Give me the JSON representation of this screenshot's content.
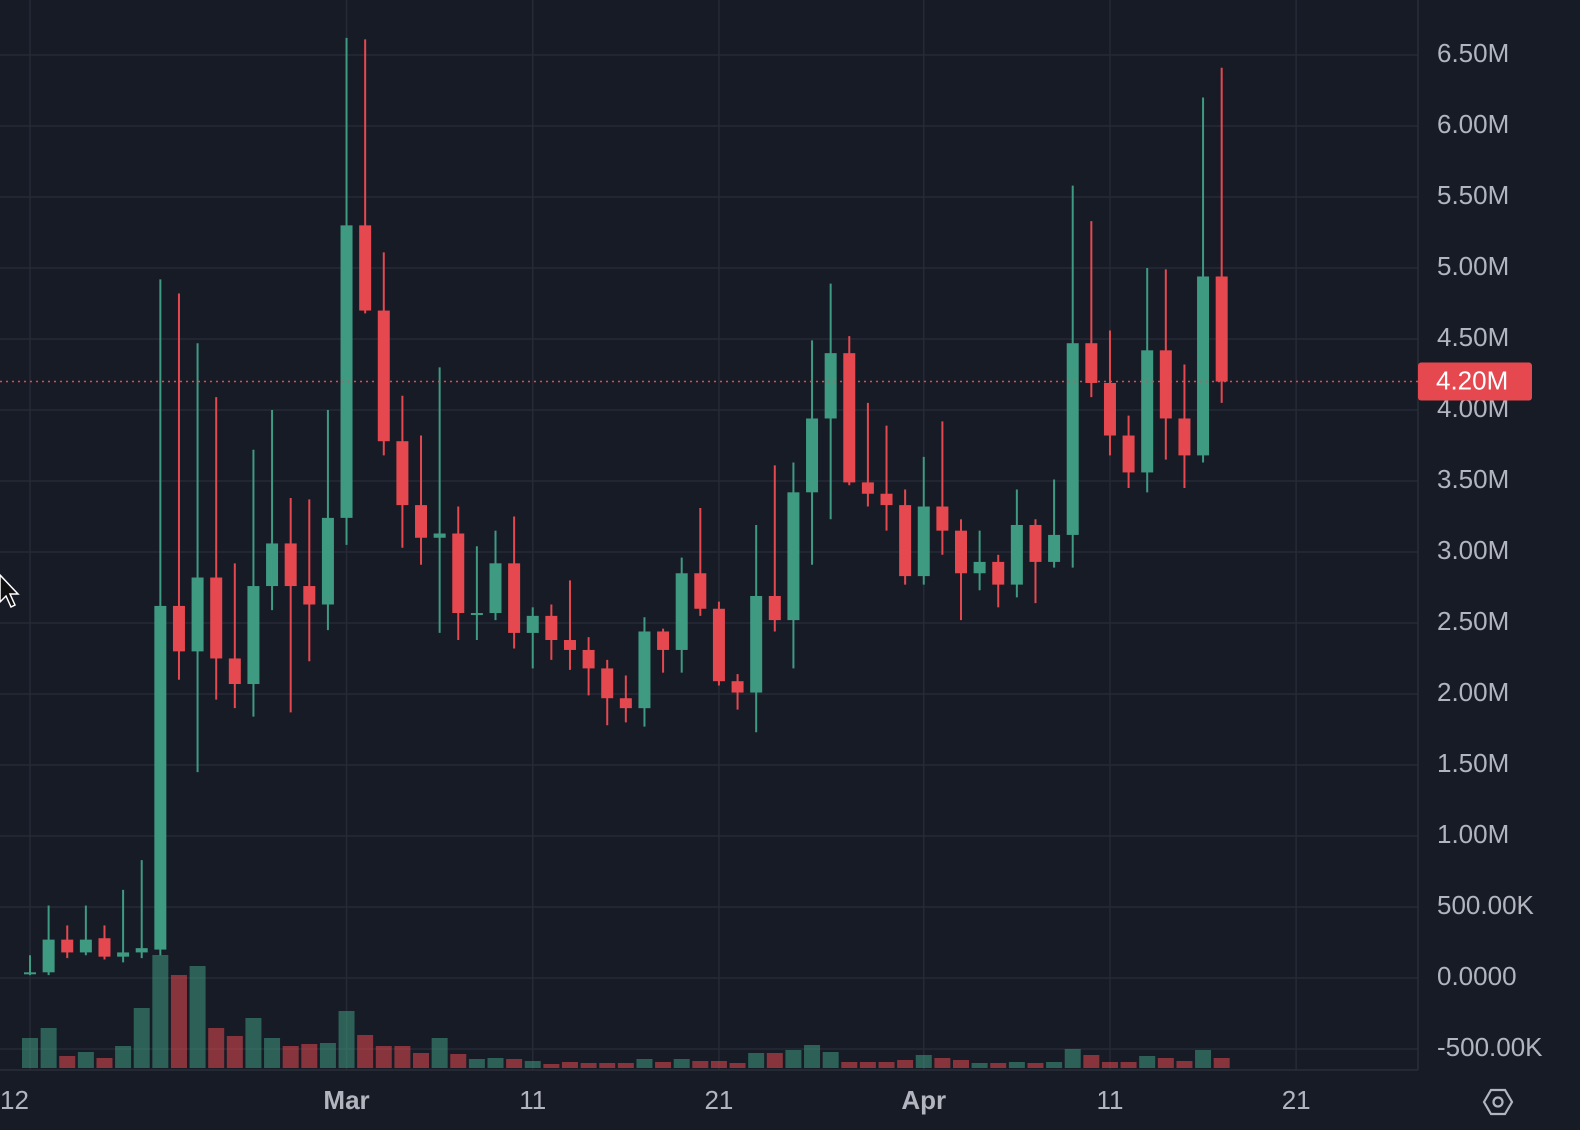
{
  "chart_data": {
    "type": "candlestick",
    "categories": [
      "12",
      null,
      null,
      null,
      null,
      null,
      null,
      null,
      null,
      null,
      null,
      null,
      null,
      null,
      null,
      null,
      null,
      "Mar",
      null,
      null,
      null,
      null,
      null,
      null,
      null,
      null,
      null,
      "11",
      null,
      null,
      null,
      null,
      null,
      null,
      null,
      null,
      null,
      "21",
      null,
      null,
      null,
      null,
      null,
      null,
      null,
      null,
      null,
      null,
      "Apr",
      null,
      null,
      null,
      null,
      null,
      null,
      null,
      null,
      null,
      "11",
      null,
      null,
      null,
      null,
      null,
      null,
      null,
      null,
      null,
      "21"
    ],
    "open": [
      0.03,
      0.04,
      0.27,
      0.18,
      0.28,
      0.15,
      0.18,
      0.2,
      2.62,
      2.3,
      2.82,
      2.25,
      2.07,
      2.76,
      3.06,
      2.76,
      2.63,
      3.24,
      5.3,
      4.7,
      3.78,
      3.33,
      3.1,
      3.13,
      2.57,
      2.57,
      2.92,
      2.43,
      2.55,
      2.38,
      2.31,
      2.18,
      1.97,
      1.9,
      2.44,
      2.31,
      2.85,
      2.6,
      2.09,
      2.01,
      2.69,
      2.52,
      3.42,
      3.94,
      4.4,
      3.49,
      3.41,
      3.33,
      2.83,
      3.32,
      3.15,
      2.85,
      2.93,
      2.77,
      3.19,
      2.93,
      3.12,
      4.47,
      4.19,
      3.82,
      3.56,
      4.42,
      3.94,
      3.68,
      4.94,
      null,
      null,
      null,
      null
    ],
    "high": [
      0.16,
      0.51,
      0.37,
      0.51,
      0.37,
      0.62,
      0.83,
      4.92,
      4.82,
      4.47,
      4.09,
      2.92,
      3.72,
      4.0,
      3.38,
      3.37,
      4.0,
      6.62,
      6.61,
      5.11,
      4.1,
      3.82,
      4.3,
      3.32,
      3.04,
      3.15,
      3.25,
      2.61,
      2.63,
      2.8,
      2.4,
      2.24,
      2.13,
      2.54,
      2.46,
      2.96,
      3.31,
      2.65,
      2.14,
      3.19,
      3.61,
      3.63,
      4.49,
      4.89,
      4.52,
      4.05,
      3.89,
      3.44,
      3.67,
      3.92,
      3.23,
      3.15,
      2.98,
      3.44,
      3.23,
      3.51,
      5.58,
      5.33,
      4.56,
      3.96,
      5.0,
      4.99,
      4.32,
      6.2,
      6.41,
      null,
      null,
      null,
      null
    ],
    "low": [
      0.02,
      0.02,
      0.14,
      0.16,
      0.13,
      0.11,
      0.14,
      0.16,
      2.1,
      1.45,
      1.96,
      1.9,
      1.84,
      2.59,
      1.87,
      2.23,
      2.45,
      3.05,
      4.68,
      3.68,
      3.03,
      2.91,
      2.43,
      2.38,
      2.38,
      2.52,
      2.32,
      2.18,
      2.24,
      2.17,
      1.99,
      1.78,
      1.8,
      1.77,
      2.15,
      2.15,
      2.55,
      2.06,
      1.89,
      1.73,
      2.44,
      2.18,
      2.91,
      3.23,
      3.47,
      3.32,
      3.15,
      2.77,
      2.77,
      2.98,
      2.52,
      2.73,
      2.61,
      2.68,
      2.64,
      2.89,
      2.89,
      4.09,
      3.68,
      3.45,
      3.42,
      3.65,
      3.45,
      3.63,
      4.05,
      null,
      null,
      null,
      null
    ],
    "close": [
      0.04,
      0.27,
      0.18,
      0.27,
      0.15,
      0.18,
      0.21,
      2.62,
      2.3,
      2.82,
      2.25,
      2.07,
      2.76,
      3.06,
      2.76,
      2.63,
      3.24,
      5.3,
      4.7,
      3.78,
      3.33,
      3.1,
      3.13,
      2.57,
      2.57,
      2.92,
      2.43,
      2.55,
      2.38,
      2.31,
      2.18,
      1.97,
      1.9,
      2.44,
      2.31,
      2.85,
      2.6,
      2.09,
      2.01,
      2.69,
      2.52,
      3.42,
      3.94,
      4.4,
      3.49,
      3.41,
      3.33,
      2.83,
      3.32,
      3.15,
      2.85,
      2.93,
      2.77,
      3.19,
      2.93,
      3.12,
      4.47,
      4.19,
      3.82,
      3.56,
      4.42,
      3.94,
      3.68,
      4.94,
      4.2,
      null,
      null,
      null,
      null
    ],
    "volume": [
      30,
      40,
      12,
      16,
      10,
      22,
      60,
      113,
      93,
      102,
      40,
      32,
      50,
      30,
      22,
      24,
      25,
      57,
      33,
      22,
      22,
      15,
      30,
      14,
      9,
      10,
      9,
      7,
      4,
      6,
      5,
      5,
      5,
      9,
      6,
      9,
      7,
      7,
      5,
      15,
      15,
      18,
      23,
      16,
      6,
      6,
      6,
      8,
      13,
      10,
      8,
      5,
      5,
      6,
      5,
      6,
      19,
      13,
      6,
      6,
      12,
      10,
      7,
      18,
      10,
      null,
      null,
      null,
      null
    ],
    "up_color": "#3f9a82",
    "down_color": "#e5484f",
    "ylim": [
      -0.634,
      6.887
    ],
    "yticks": [
      {
        "value": 6.5,
        "label": "6.50M"
      },
      {
        "value": 6.0,
        "label": "6.00M"
      },
      {
        "value": 5.5,
        "label": "5.50M"
      },
      {
        "value": 5.0,
        "label": "5.00M"
      },
      {
        "value": 4.5,
        "label": "4.50M"
      },
      {
        "value": 4.0,
        "label": "4.00M"
      },
      {
        "value": 3.5,
        "label": "3.50M"
      },
      {
        "value": 3.0,
        "label": "3.00M"
      },
      {
        "value": 2.5,
        "label": "2.50M"
      },
      {
        "value": 2.0,
        "label": "2.00M"
      },
      {
        "value": 1.5,
        "label": "1.50M"
      },
      {
        "value": 1.0,
        "label": "1.00M"
      },
      {
        "value": 0.5,
        "label": "500.00K"
      },
      {
        "value": 0,
        "label": "0.0000"
      },
      {
        "value": -0.5,
        "label": "-500.00K"
      }
    ],
    "volume_lim": [
      0,
      120
    ],
    "last_price": {
      "value": 4.2,
      "label": "4.20M"
    },
    "grid": true
  }
}
